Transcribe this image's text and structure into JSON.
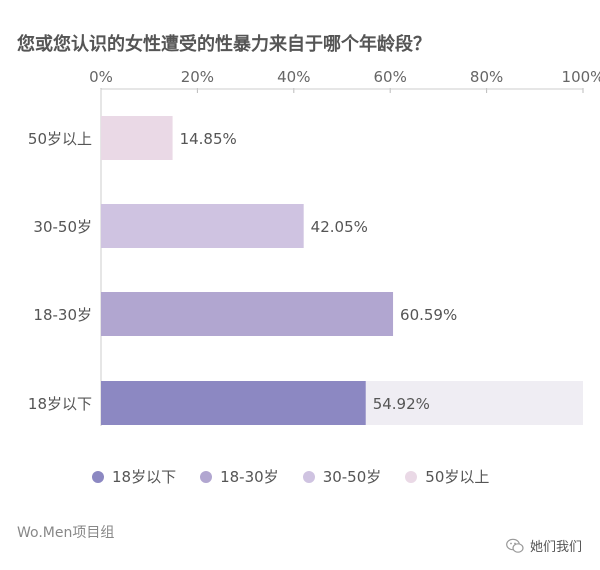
{
  "title": "您或您认识的女性遭受的性暴力来自于哪个年龄段？",
  "chart_data": {
    "type": "bar",
    "orientation": "horizontal",
    "title": "您或您认识的女性遭受的性暴力来自于哪个年龄段？",
    "categories": [
      "50岁以上",
      "30-50岁",
      "18-30岁",
      "18岁以下"
    ],
    "values": [
      14.85,
      42.05,
      60.59,
      54.92
    ],
    "value_labels": [
      "14.85%",
      "42.05%",
      "60.59%",
      "54.92%"
    ],
    "colors": [
      "#ead9e6",
      "#cfc3e1",
      "#b1a6d0",
      "#8c88c2"
    ],
    "background_bar_color": "#efedf3",
    "xlim": [
      0,
      100
    ],
    "xticks": [
      0,
      20,
      40,
      60,
      80,
      100
    ],
    "xtick_labels": [
      "0%",
      "20%",
      "40%",
      "60%",
      "80%",
      "100%"
    ],
    "axis_position": "top",
    "grid": false,
    "legend_position": "bottom",
    "legend": [
      "18岁以下",
      "18-30岁",
      "30-50岁",
      "50岁以上"
    ],
    "legend_colors": [
      "#8c88c2",
      "#b1a6d0",
      "#cfc3e1",
      "#ead9e6"
    ]
  },
  "footer": {
    "source": "Wo.Men项目组",
    "account": "她们我们"
  }
}
